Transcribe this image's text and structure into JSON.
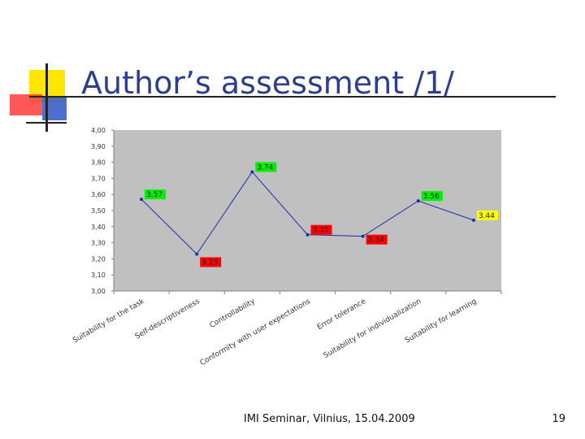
{
  "slide": {
    "title": "Author’s assessment /1/",
    "footer": "IMI Seminar,  Vilnius, 15.04.2009",
    "page_number": "19"
  },
  "chart_data": {
    "type": "line",
    "categories": [
      "Suitability for the task",
      "Self-descriptiveness",
      "Controllability",
      "Conformity with user expectations",
      "Error tolerance",
      "Suitability for individualization",
      "Suitability for learning"
    ],
    "series": [
      {
        "values": [
          3.57,
          3.23,
          3.74,
          3.35,
          3.34,
          3.56,
          3.44
        ]
      }
    ],
    "data_labels": [
      "3.57",
      "3.23",
      "3.74",
      "3.35",
      "3.34",
      "3.56",
      "3.44"
    ],
    "label_colors": [
      "#00ee00",
      "#ff0000",
      "#00ee00",
      "#ff0000",
      "#ff0000",
      "#00ee00",
      "#ffff00"
    ],
    "y_ticks": [
      "4,00",
      "3,90",
      "3,80",
      "3,70",
      "3,60",
      "3,50",
      "3,40",
      "3,30",
      "3,20",
      "3,10",
      "3,00"
    ],
    "ylim": [
      3.0,
      4.0
    ],
    "grid": false,
    "legend": "none",
    "plot_background": "#c0c0c0",
    "line_color": "#1a2fa8"
  }
}
